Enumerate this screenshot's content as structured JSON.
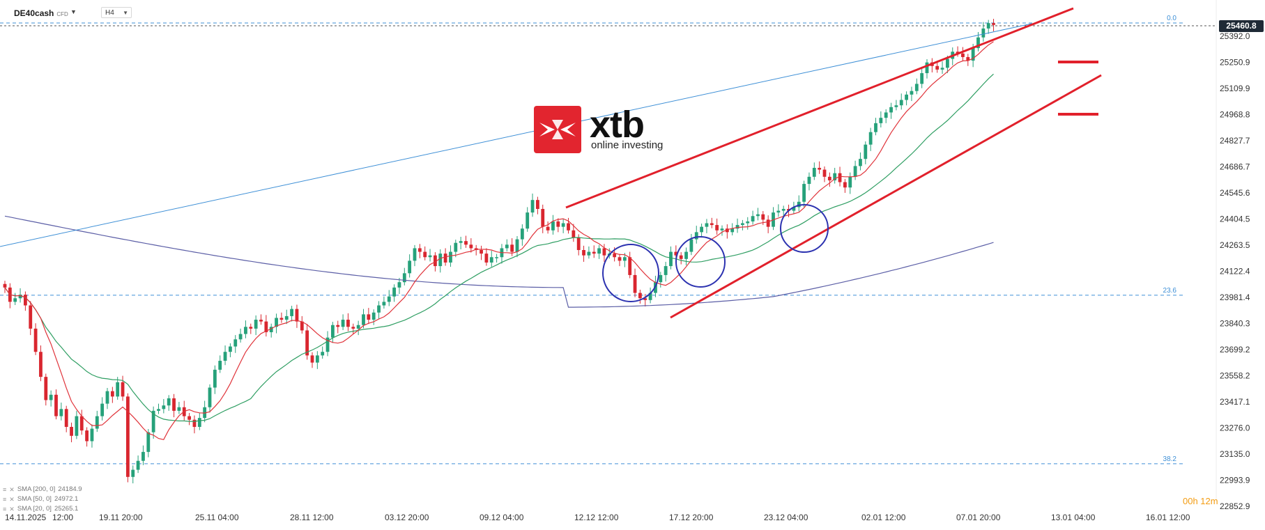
{
  "header": {
    "symbol": "DE40cash",
    "symbol_tag": "CFD",
    "timeframe": "H4"
  },
  "logo": {
    "brand": "xtb",
    "tagline": "online investing",
    "icon": "xtb-x-logo-icon"
  },
  "current_price_label": "25460.8",
  "countdown": "00h 12m",
  "indicator_legend": [
    {
      "label": "SMA [200, 0]",
      "value": "24184.9",
      "color": "#5b5ea6"
    },
    {
      "label": "SMA [50, 0]",
      "value": "24972.1",
      "color": "#2e9e62"
    },
    {
      "label": "SMA [20, 0]",
      "value": "25265.1",
      "color": "#e0333a"
    }
  ],
  "colors": {
    "up": "#26a17a",
    "down": "#d9262f",
    "sma200": "#5b5ea6",
    "sma50": "#2e9e62",
    "sma20": "#e0333a",
    "fib": "#3d8fd6",
    "annot": "#e1202b",
    "circle": "#2c32b0"
  },
  "chart_data": {
    "type": "candlestick",
    "y_axis_ticks": [
      "25392.0",
      "25250.9",
      "25109.9",
      "24968.8",
      "24827.7",
      "24686.7",
      "24545.6",
      "24404.5",
      "24263.5",
      "24122.4",
      "23981.4",
      "23840.3",
      "23699.2",
      "23558.2",
      "23417.1",
      "23276.0",
      "23135.0",
      "22993.9",
      "22852.9"
    ],
    "x_axis_labels": [
      "14.11.2025",
      "12:00",
      "19.11 20:00",
      "25.11 04:00",
      "28.11 12:00",
      "03.12 20:00",
      "09.12 04:00",
      "12.12 12:00",
      "17.12 20:00",
      "23.12 04:00",
      "02.01 12:00",
      "07.01 20:00",
      "13.01 04:00",
      "16.01 12:00"
    ],
    "ylim": [
      22852.9,
      25460.8
    ],
    "fib_levels": [
      {
        "label": "0.0",
        "price": 25460.8
      },
      {
        "label": "23.6",
        "price": 23937.0
      },
      {
        "label": "38.2",
        "price": 22993.9
      }
    ],
    "closes": [
      23980,
      23900,
      23920,
      23940,
      23880,
      23750,
      23620,
      23480,
      23350,
      23380,
      23260,
      23300,
      23200,
      23150,
      23260,
      23180,
      23120,
      23190,
      23260,
      23330,
      23400,
      23370,
      23450,
      23370,
      22920,
      22960,
      23010,
      23060,
      23170,
      23290,
      23300,
      23320,
      23360,
      23290,
      23310,
      23260,
      23240,
      23200,
      23250,
      23310,
      23420,
      23520,
      23570,
      23620,
      23650,
      23690,
      23720,
      23760,
      23750,
      23800,
      23790,
      23730,
      23760,
      23810,
      23800,
      23820,
      23860,
      23790,
      23740,
      23600,
      23560,
      23600,
      23620,
      23700,
      23770,
      23760,
      23800,
      23760,
      23750,
      23770,
      23830,
      23800,
      23840,
      23880,
      23900,
      23930,
      23980,
      24010,
      24060,
      24130,
      24200,
      24180,
      24150,
      24160,
      24100,
      24170,
      24120,
      24180,
      24230,
      24240,
      24220,
      24200,
      24190,
      24170,
      24120,
      24150,
      24150,
      24200,
      24220,
      24180,
      24250,
      24310,
      24400,
      24470,
      24420,
      24320,
      24300,
      24350,
      24320,
      24340,
      24300,
      24260,
      24190,
      24160,
      24180,
      24170,
      24200,
      24160,
      24170,
      24150,
      24130,
      24150,
      24050,
      23950,
      23920,
      23910,
      23950,
      24010,
      24050,
      24100,
      24180,
      24160,
      24140,
      24180,
      24250,
      24290,
      24320,
      24340,
      24330,
      24300,
      24310,
      24290,
      24310,
      24330,
      24340,
      24350,
      24380,
      24390,
      24360,
      24320,
      24400,
      24410,
      24420,
      24410,
      24430,
      24460,
      24560,
      24600,
      24650,
      24640,
      24600,
      24580,
      24620,
      24570,
      24540,
      24600,
      24660,
      24700,
      24780,
      24850,
      24900,
      24930,
      24960,
      24990,
      25000,
      25030,
      25060,
      25080,
      25120,
      25180,
      25240,
      25220,
      25200,
      25210,
      25260,
      25300,
      25290,
      25270,
      25250,
      25320,
      25380,
      25430,
      25460,
      25450
    ]
  }
}
